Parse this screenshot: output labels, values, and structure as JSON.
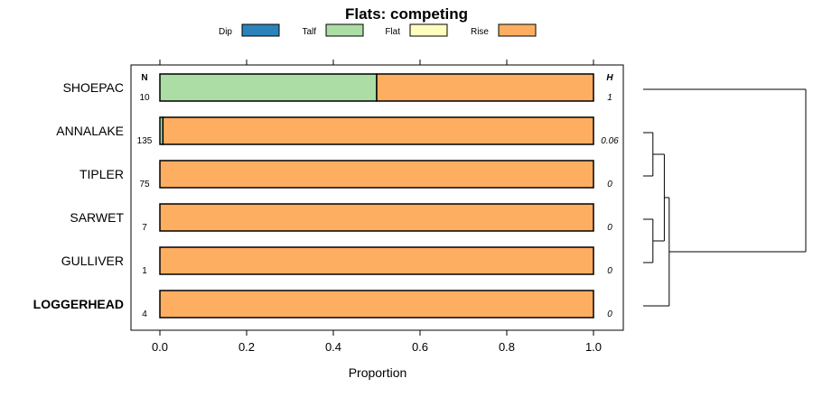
{
  "chart_data": {
    "type": "bar",
    "orientation": "horizontal",
    "stacked": true,
    "title": "Flats: competing",
    "xlabel": "Proportion",
    "xlim": [
      -0.06,
      1.07
    ],
    "xticks": [
      0.0,
      0.2,
      0.4,
      0.6,
      0.8,
      1.0
    ],
    "xtick_labels": [
      "0.0",
      "0.2",
      "0.4",
      "0.6",
      "0.8",
      "1.0"
    ],
    "legend_placement": "top",
    "colors": {
      "Dip": "#2b83ba",
      "Talf": "#abdda4",
      "Flat": "#ffffbf",
      "Rise": "#fdae61"
    },
    "legend": [
      "Dip",
      "Talf",
      "Flat",
      "Rise"
    ],
    "n_header": "N",
    "h_header": "H",
    "categories": [
      "SHOEPAC",
      "ANNALAKE",
      "TIPLER",
      "SARWET",
      "GULLIVER",
      "LOGGERHEAD"
    ],
    "bold_categories": [
      "LOGGERHEAD"
    ],
    "n_values": [
      "10",
      "135",
      "75",
      "7",
      "1",
      "4"
    ],
    "h_values": [
      "1",
      "0.06",
      "0",
      "0",
      "0",
      "0"
    ],
    "series": [
      {
        "name": "Dip",
        "values": [
          0,
          0,
          0,
          0,
          0,
          0
        ]
      },
      {
        "name": "Talf",
        "values": [
          0.5,
          0.007,
          0,
          0,
          0,
          0
        ]
      },
      {
        "name": "Flat",
        "values": [
          0,
          0,
          0,
          0,
          0,
          0
        ]
      },
      {
        "name": "Rise",
        "values": [
          0.5,
          0.993,
          1,
          1,
          1,
          1
        ]
      }
    ],
    "dendrogram": {
      "leaves": [
        "SHOEPAC",
        "ANNALAKE",
        "TIPLER",
        "SARWET",
        "GULLIVER",
        "LOGGERHEAD"
      ],
      "merges": [
        {
          "a": "ANNALAKE",
          "b": "TIPLER",
          "height": 0.06
        },
        {
          "a": "SARWET",
          "b": "GULLIVER",
          "height": 0.06
        },
        {
          "a": "ANNALAKE+TIPLER",
          "b": "SARWET+GULLIVER",
          "height": 0.13
        },
        {
          "a": "ANNALAKE+TIPLER+SARWET+GULLIVER",
          "b": "LOGGERHEAD",
          "height": 0.16
        },
        {
          "a": "SHOEPAC",
          "b": "ANNALAKE+TIPLER+SARWET+GULLIVER+LOGGERHEAD",
          "height": 1.0
        }
      ]
    }
  }
}
